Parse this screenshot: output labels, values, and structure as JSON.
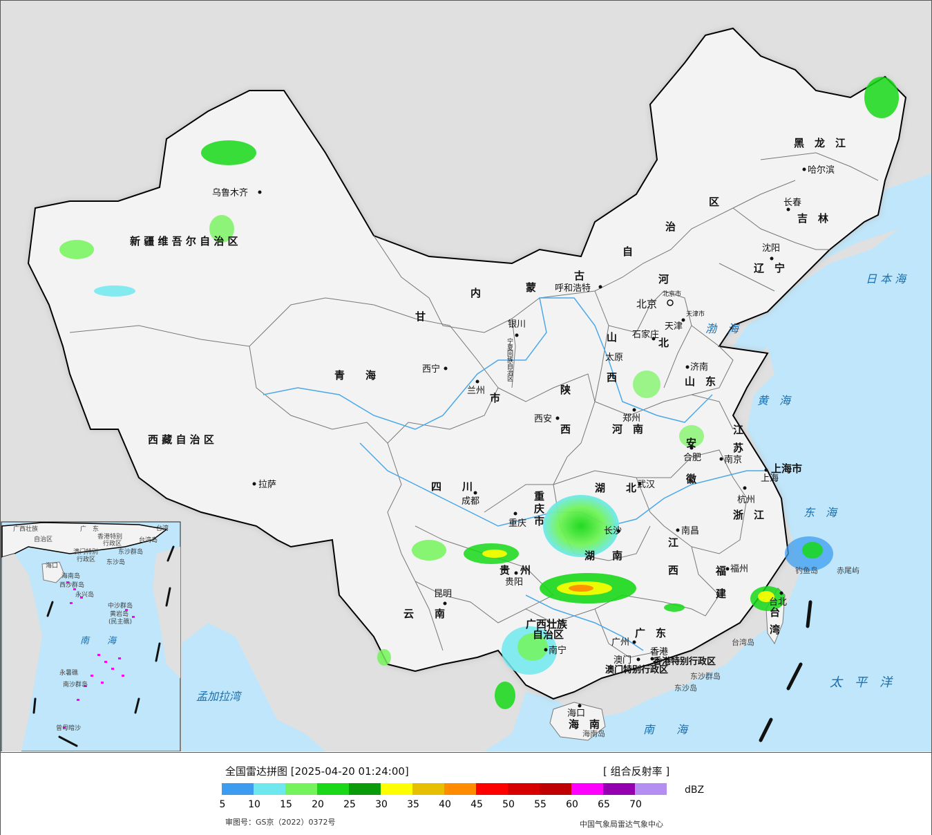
{
  "legend": {
    "title": "全国雷达拼图 [2025-04-20 01:24:00]",
    "product": "[ 组合反射率 ]",
    "unit": "dBZ",
    "ticks": [
      "5",
      "10",
      "15",
      "20",
      "25",
      "30",
      "35",
      "40",
      "45",
      "50",
      "55",
      "60",
      "65",
      "70"
    ],
    "colors": [
      "#3c9df0",
      "#6ee8ee",
      "#74f45a",
      "#18d818",
      "#0a9a0a",
      "#ffff00",
      "#e6c000",
      "#ff8c00",
      "#ff0000",
      "#d60000",
      "#c00000",
      "#ff00ff",
      "#9400b0",
      "#b48ef0"
    ],
    "approval": "审图号：GS京（2022）0372号",
    "agency": "中国气象局雷达气象中心"
  },
  "regions": [
    {
      "label": "新 疆 维 吾 尔 自 治 区"
    },
    {
      "label": "西 藏 自 治 区"
    },
    {
      "label": "青　　海"
    },
    {
      "label": "甘"
    },
    {
      "label": "内"
    },
    {
      "label": "蒙"
    },
    {
      "label": "古"
    },
    {
      "label": "自"
    },
    {
      "label": "治"
    },
    {
      "label": "区"
    },
    {
      "label": "黑　龙　江"
    },
    {
      "label": "吉　林"
    },
    {
      "label": "辽　宁"
    },
    {
      "label": "河"
    },
    {
      "label": "北"
    },
    {
      "label": "山"
    },
    {
      "label": "西"
    },
    {
      "label": "山　东"
    },
    {
      "label": "陕"
    },
    {
      "label": "西"
    },
    {
      "label": "河　南"
    },
    {
      "label": "四　　川"
    },
    {
      "label": "重"
    },
    {
      "label": "庆"
    },
    {
      "label": "市"
    },
    {
      "label": "湖　　北"
    },
    {
      "label": "湖"
    },
    {
      "label": "南"
    },
    {
      "label": "安"
    },
    {
      "label": "徽"
    },
    {
      "label": "江"
    },
    {
      "label": "苏"
    },
    {
      "label": "浙　江"
    },
    {
      "label": "江"
    },
    {
      "label": "西"
    },
    {
      "label": "福"
    },
    {
      "label": "建"
    },
    {
      "label": "贵　州"
    },
    {
      "label": "云　　南"
    },
    {
      "label": "广西壮族"
    },
    {
      "label": "自治区"
    },
    {
      "label": "广　东"
    },
    {
      "label": "海　南"
    },
    {
      "label": "台"
    },
    {
      "label": "湾"
    },
    {
      "label": "上海市"
    },
    {
      "label": "宁夏回族自治区"
    },
    {
      "label": "市"
    },
    {
      "label": "香港特别行政区"
    },
    {
      "label": "澳门特别行政区"
    }
  ],
  "cities": [
    {
      "name": "乌鲁木齐"
    },
    {
      "name": "拉萨"
    },
    {
      "name": "西宁"
    },
    {
      "name": "兰州"
    },
    {
      "name": "银川"
    },
    {
      "name": "呼和浩特"
    },
    {
      "name": "北京"
    },
    {
      "name": "北京市"
    },
    {
      "name": "天津"
    },
    {
      "name": "天津市"
    },
    {
      "name": "石家庄"
    },
    {
      "name": "太原"
    },
    {
      "name": "济南"
    },
    {
      "name": "郑州"
    },
    {
      "name": "西安"
    },
    {
      "name": "成都"
    },
    {
      "name": "重庆"
    },
    {
      "name": "武汉"
    },
    {
      "name": "长沙"
    },
    {
      "name": "合肥"
    },
    {
      "name": "南京"
    },
    {
      "name": "上海"
    },
    {
      "name": "杭州"
    },
    {
      "name": "南昌"
    },
    {
      "name": "福州"
    },
    {
      "name": "台北"
    },
    {
      "name": "贵阳"
    },
    {
      "name": "昆明"
    },
    {
      "name": "南宁"
    },
    {
      "name": "广州"
    },
    {
      "name": "澳门"
    },
    {
      "name": "香港"
    },
    {
      "name": "海口"
    },
    {
      "name": "哈尔滨"
    },
    {
      "name": "长春"
    },
    {
      "name": "沈阳"
    }
  ],
  "seas": [
    {
      "name": "日 本 海"
    },
    {
      "name": "渤　海"
    },
    {
      "name": "黄　海"
    },
    {
      "name": "东　海"
    },
    {
      "name": "太　平　洋"
    },
    {
      "name": "南　　海"
    },
    {
      "name": "孟加拉湾"
    }
  ],
  "islands": [
    {
      "name": "台湾岛"
    },
    {
      "name": "赤尾屿"
    },
    {
      "name": "钓鱼岛"
    },
    {
      "name": "东沙群岛"
    },
    {
      "name": "东沙岛"
    },
    {
      "name": "海南岛"
    }
  ],
  "inset": {
    "labels": [
      {
        "text": "广西壮族"
      },
      {
        "text": "自治区"
      },
      {
        "text": "广　东"
      },
      {
        "text": "台湾"
      },
      {
        "text": "台湾岛"
      },
      {
        "text": "香港特别"
      },
      {
        "text": "行政区"
      },
      {
        "text": "澳门特别"
      },
      {
        "text": "行政区"
      },
      {
        "text": "东沙群岛"
      },
      {
        "text": "东沙岛"
      },
      {
        "text": "海口"
      },
      {
        "text": "海南岛"
      },
      {
        "text": "西沙群岛"
      },
      {
        "text": "永兴岛"
      },
      {
        "text": "中沙群岛"
      },
      {
        "text": "黄岩岛"
      },
      {
        "text": "(民主礁)"
      },
      {
        "text": "南　　海"
      },
      {
        "text": "永暑礁"
      },
      {
        "text": "南沙群岛"
      },
      {
        "text": "曾母暗沙"
      }
    ]
  },
  "colors": {
    "ocean": "#bfe6fa",
    "foreign_land": "#e0e0e0",
    "china_land": "#f3f3f3",
    "province_border": "#777777",
    "national_border": "#000000",
    "river": "#4aa8e8"
  }
}
